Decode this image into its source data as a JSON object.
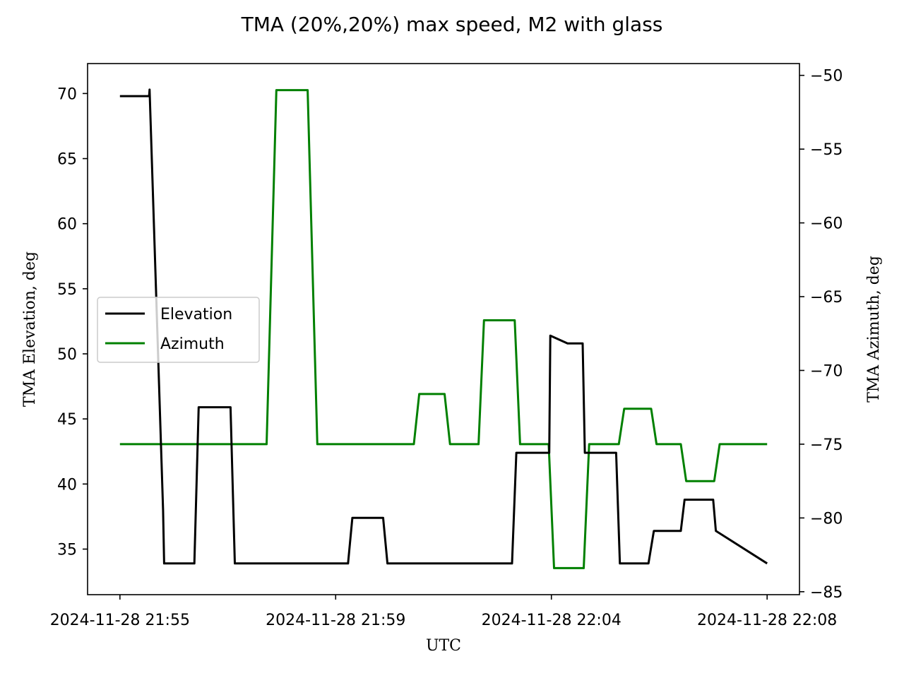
{
  "chart_data": {
    "type": "line",
    "title": "TMA (20%,20%) max speed, M2 with glass",
    "xlabel": "UTC",
    "ylabel_left": "TMA Elevation, deg",
    "ylabel_right": "TMA Azimuth, deg",
    "x_unit": "minutes",
    "x_ticks": [
      {
        "x": 0,
        "label": "2024-11-28 21:55"
      },
      {
        "x": 4,
        "label": "2024-11-28 21:59"
      },
      {
        "x": 8,
        "label": "2024-11-28 22:04"
      },
      {
        "x": 12,
        "label": "2024-11-28 22:08"
      }
    ],
    "xlim": [
      -0.6,
      12.6
    ],
    "ylim_left": [
      31.5,
      72.3
    ],
    "ylim_right": [
      -85.2,
      -49.2
    ],
    "yticks_left": [
      35,
      40,
      45,
      50,
      55,
      60,
      65,
      70
    ],
    "yticks_right": [
      -85,
      -80,
      -75,
      -70,
      -65,
      -60,
      -55,
      -50
    ],
    "legend": {
      "placement": "center-left",
      "entries": [
        "Elevation",
        "Azimuth"
      ]
    },
    "grid": false,
    "series": [
      {
        "name": "Elevation",
        "axis": "left",
        "color": "#000000",
        "x": [
          0,
          0.54,
          0.55,
          0.8,
          0.82,
          1.38,
          1.46,
          2.05,
          2.13,
          3.0,
          3.15,
          4.23,
          4.31,
          4.88,
          4.96,
          6.0,
          6.15,
          7.27,
          7.35,
          7.96,
          7.98,
          8.3,
          8.33,
          8.58,
          8.62,
          8.7,
          9.2,
          9.27,
          9.8,
          9.9,
          10.4,
          10.47,
          11.0,
          11.05,
          12.0
        ],
        "y": [
          69.8,
          69.8,
          70.3,
          38.0,
          33.9,
          33.9,
          45.9,
          45.9,
          33.9,
          33.9,
          33.9,
          33.9,
          37.4,
          37.4,
          33.9,
          33.9,
          33.9,
          33.9,
          42.4,
          42.4,
          51.4,
          50.8,
          50.8,
          50.8,
          42.4,
          42.4,
          42.4,
          33.9,
          33.9,
          36.4,
          36.4,
          38.8,
          38.8,
          36.4,
          33.9
        ]
      },
      {
        "name": "Azimuth",
        "axis": "right",
        "color": "#008000",
        "x": [
          0,
          2.72,
          2.9,
          3.48,
          3.66,
          5.45,
          5.55,
          6.02,
          6.12,
          6.65,
          6.75,
          7.32,
          7.42,
          7.95,
          8.05,
          8.6,
          8.7,
          9.25,
          9.35,
          9.85,
          9.95,
          10.4,
          10.5,
          11.02,
          11.12,
          12.0
        ],
        "y": [
          -75,
          -75,
          -51.0,
          -51.0,
          -75,
          -75,
          -71.6,
          -71.6,
          -75,
          -75,
          -66.6,
          -66.6,
          -75,
          -75,
          -83.4,
          -83.4,
          -75,
          -75,
          -72.6,
          -72.6,
          -75,
          -75,
          -77.5,
          -77.5,
          -75,
          -75
        ]
      }
    ]
  }
}
